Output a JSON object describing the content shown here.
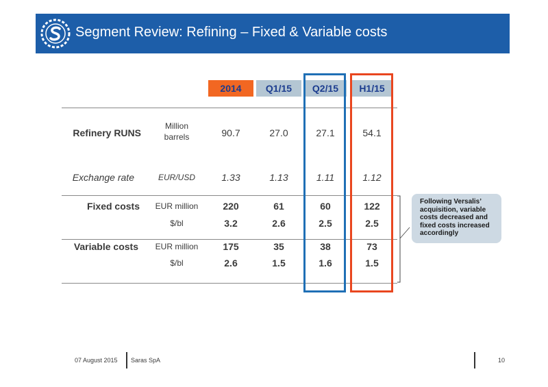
{
  "slide": {
    "title": "Segment Review: Refining – Fixed & Variable costs",
    "brand_color": "#1d5ea9",
    "logo_icon": "saras-logo-icon"
  },
  "table": {
    "columns": [
      {
        "label": "2014",
        "bg": "#f26722",
        "color": "#1b3c8f"
      },
      {
        "label": "Q1/15",
        "bg": "#b4c6d3",
        "color": "#1b3c8f"
      },
      {
        "label": "Q2/15",
        "bg": "#b4c6d3",
        "color": "#1b3c8f"
      },
      {
        "label": "H1/15",
        "bg": "#b4c6d3",
        "color": "#1b3c8f"
      }
    ],
    "runs": {
      "label": "Refinery RUNS",
      "unit_line1": "Million",
      "unit_line2": "barrels",
      "values": [
        "90.7",
        "27.0",
        "27.1",
        "54.1"
      ]
    },
    "exchange": {
      "label": "Exchange rate",
      "unit": "EUR/USD",
      "values": [
        "1.33",
        "1.13",
        "1.11",
        "1.12"
      ]
    },
    "fixed": {
      "label": "Fixed costs",
      "unit1": "EUR million",
      "values1": [
        "220",
        "61",
        "60",
        "122"
      ],
      "unit2": "$/bl",
      "values2": [
        "3.2",
        "2.6",
        "2.5",
        "2.5"
      ]
    },
    "variable": {
      "label": "Variable costs",
      "unit1": "EUR million",
      "values1": [
        "175",
        "35",
        "38",
        "73"
      ],
      "unit2": "$/bl",
      "values2": [
        "2.6",
        "1.5",
        "1.6",
        "1.5"
      ]
    },
    "highlight_colors": {
      "q2": "#1f6fb5",
      "h1": "#e9461f"
    }
  },
  "callout": {
    "line1": "Following Versalis’",
    "line2": "acquisition,  variable",
    "line3": "costs decreased and",
    "line4": "fixed costs increased",
    "line5": "accordingly"
  },
  "footer": {
    "date": "07 August 2015",
    "company": "Saras SpA",
    "page": "10"
  }
}
